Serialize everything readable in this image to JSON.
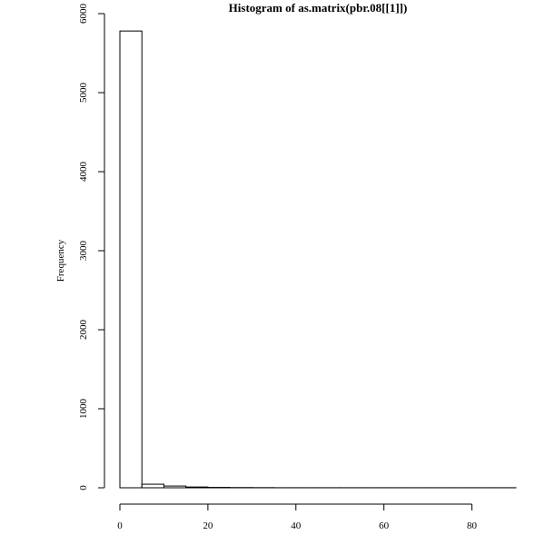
{
  "chart_data": {
    "type": "bar",
    "title": "Histogram of as.matrix(pbr.08[[1]])",
    "xlabel": "",
    "ylabel": "Frequency",
    "xlim": [
      0,
      90
    ],
    "ylim": [
      0,
      6000
    ],
    "x_ticks": [
      0,
      20,
      40,
      60,
      80
    ],
    "y_ticks": [
      0,
      1000,
      2000,
      3000,
      4000,
      5000,
      6000
    ],
    "bins": [
      {
        "start": 0,
        "end": 5,
        "value": 5780
      },
      {
        "start": 5,
        "end": 10,
        "value": 45
      },
      {
        "start": 10,
        "end": 15,
        "value": 22
      },
      {
        "start": 15,
        "end": 20,
        "value": 10
      },
      {
        "start": 20,
        "end": 25,
        "value": 5
      },
      {
        "start": 25,
        "end": 30,
        "value": 3
      },
      {
        "start": 30,
        "end": 35,
        "value": 2
      },
      {
        "start": 35,
        "end": 40,
        "value": 1
      },
      {
        "start": 40,
        "end": 45,
        "value": 1
      },
      {
        "start": 45,
        "end": 50,
        "value": 1
      },
      {
        "start": 50,
        "end": 55,
        "value": 1
      },
      {
        "start": 55,
        "end": 60,
        "value": 1
      },
      {
        "start": 60,
        "end": 65,
        "value": 1
      },
      {
        "start": 65,
        "end": 70,
        "value": 1
      },
      {
        "start": 70,
        "end": 75,
        "value": 1
      },
      {
        "start": 75,
        "end": 80,
        "value": 1
      },
      {
        "start": 80,
        "end": 85,
        "value": 1
      },
      {
        "start": 85,
        "end": 90,
        "value": 1
      }
    ],
    "colors": {
      "bar_fill": "#ffffff",
      "bar_stroke": "#000000",
      "axis": "#000000"
    }
  }
}
